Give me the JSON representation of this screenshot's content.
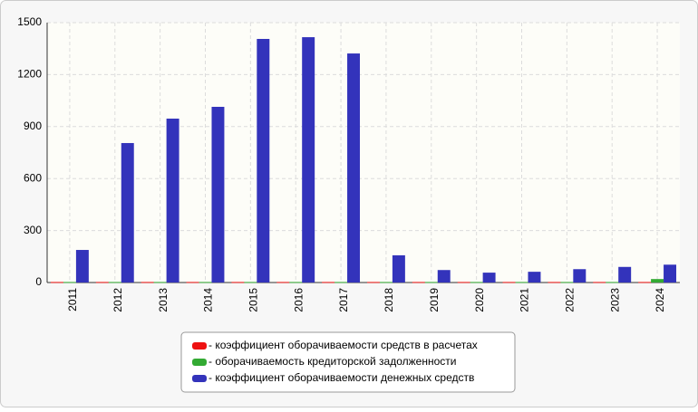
{
  "chart_data": {
    "type": "bar",
    "categories": [
      "2011",
      "2012",
      "2013",
      "2014",
      "2015",
      "2016",
      "2017",
      "2018",
      "2019",
      "2020",
      "2021",
      "2022",
      "2023",
      "2024"
    ],
    "series": [
      {
        "name": "- коэффициент оборачиваемости средств в расчетах",
        "color": "#ee1111",
        "values": [
          3,
          3,
          3,
          3,
          3,
          3,
          3,
          3,
          3,
          3,
          3,
          3,
          3,
          3
        ]
      },
      {
        "name": "- оборачиваемость кредиторской задолженности",
        "color": "#33aa33",
        "values": [
          3,
          3,
          3,
          3,
          3,
          3,
          3,
          3,
          3,
          3,
          3,
          3,
          3,
          20
        ]
      },
      {
        "name": "- коэффициент оборачиваемости денежных средств",
        "color": "#3333bb",
        "values": [
          188,
          805,
          946,
          1014,
          1406,
          1416,
          1322,
          157,
          72,
          57,
          62,
          77,
          90,
          103
        ]
      }
    ],
    "ylim": [
      0,
      1500
    ],
    "yticks": [
      0,
      300,
      600,
      900,
      1200,
      1500
    ],
    "grid": true,
    "legend": "bottom"
  }
}
